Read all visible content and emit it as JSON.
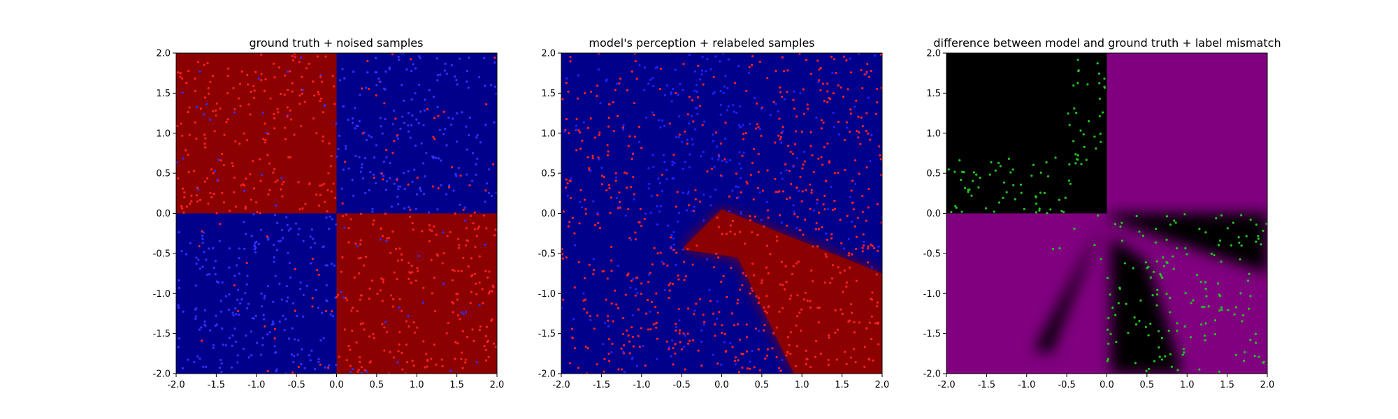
{
  "chart_data": [
    {
      "type": "heatmap",
      "title": "ground truth + noised samples",
      "xlim": [
        -2.0,
        2.0
      ],
      "ylim": [
        -2.0,
        2.0
      ],
      "xticks": [
        "-2.0",
        "-1.5",
        "-1.0",
        "-0.5",
        "0.0",
        "0.5",
        "1.0",
        "1.5",
        "2.0"
      ],
      "yticks": [
        "-2.0",
        "-1.5",
        "-1.0",
        "-0.5",
        "0.0",
        "0.5",
        "1.0",
        "1.5",
        "2.0"
      ],
      "grid": false,
      "colors": {
        "class_a": "#8b0000",
        "class_b": "#00008b",
        "point_a": "#ff2020",
        "point_b": "#3030ff"
      },
      "regions": [
        {
          "x": [
            -2.0,
            0.0
          ],
          "y": [
            0.0,
            2.0
          ],
          "class": "a"
        },
        {
          "x": [
            0.0,
            2.0
          ],
          "y": [
            0.0,
            2.0
          ],
          "class": "b"
        },
        {
          "x": [
            -2.0,
            0.0
          ],
          "y": [
            -2.0,
            0.0
          ],
          "class": "b"
        },
        {
          "x": [
            0.0,
            2.0
          ],
          "y": [
            -2.0,
            0.0
          ],
          "class": "a"
        }
      ],
      "samples": {
        "count": 1000,
        "noise": "labels flipped near boundaries",
        "x_range": [
          -2.0,
          2.0
        ],
        "y_range": [
          -2.0,
          2.0
        ]
      }
    },
    {
      "type": "heatmap",
      "title": "model's perception + relabeled samples",
      "xlim": [
        -2.0,
        2.0
      ],
      "ylim": [
        -2.0,
        2.0
      ],
      "xticks": [
        "-2.0",
        "-1.5",
        "-1.0",
        "-0.5",
        "0.0",
        "0.5",
        "1.0",
        "1.5",
        "2.0"
      ],
      "yticks": [
        "-2.0",
        "-1.5",
        "-1.0",
        "-0.5",
        "0.0",
        "0.5",
        "1.0",
        "1.5",
        "2.0"
      ],
      "grid": false,
      "colors": {
        "class_a": "#8b0000",
        "class_b": "#00008b",
        "point_a": "#ff2020",
        "point_b": "#2020ff"
      },
      "red_region_polygon": [
        [
          0.0,
          0.05
        ],
        [
          2.0,
          -0.75
        ],
        [
          2.0,
          -2.0
        ],
        [
          0.9,
          -2.0
        ],
        [
          0.2,
          -0.55
        ],
        [
          -0.5,
          -0.45
        ]
      ],
      "samples": {
        "count": 1000
      }
    },
    {
      "type": "heatmap",
      "title": "difference between model and ground truth + label mismatch",
      "xlim": [
        -2.0,
        2.0
      ],
      "ylim": [
        -2.0,
        2.0
      ],
      "xticks": [
        "-2.0",
        "-1.5",
        "-1.0",
        "-0.5",
        "0.0",
        "0.5",
        "1.0",
        "1.5",
        "2.0"
      ],
      "yticks": [
        "-2.0",
        "-1.5",
        "-1.0",
        "-0.5",
        "0.0",
        "0.5",
        "1.0",
        "1.5",
        "2.0"
      ],
      "grid": false,
      "colors": {
        "agree": "#800080",
        "disagree": "#000000",
        "mismatch_point": "#1ec81e"
      },
      "mismatch_samples": {
        "count": 260
      }
    }
  ]
}
